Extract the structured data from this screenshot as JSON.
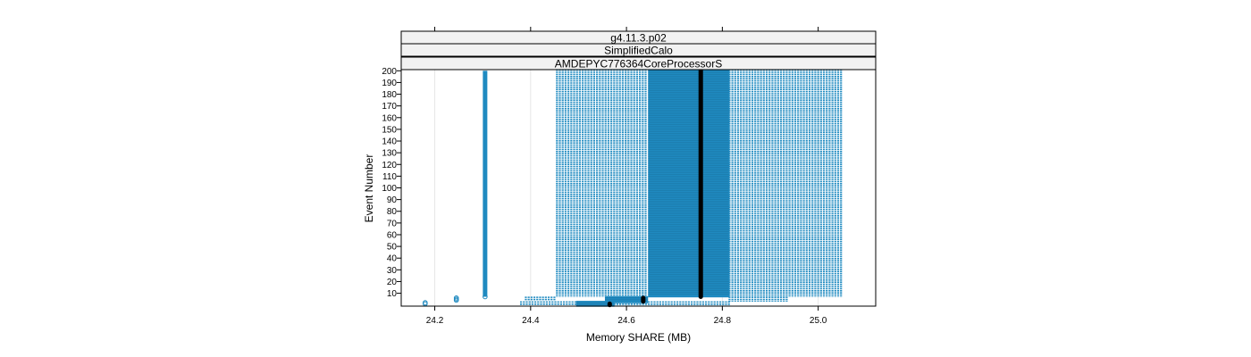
{
  "chart_data": {
    "type": "scatter",
    "strips": [
      "g4.11.3.p02",
      "SimplifiedCalo",
      "AMDEPYC776364CoreProcessorS"
    ],
    "xlabel": "Memory SHARE (MB)",
    "ylabel": "Event Number",
    "xlim": [
      24.13,
      25.12
    ],
    "ylim": [
      -1,
      201
    ],
    "x_ticks": [
      "24.2",
      "24.4",
      "24.6",
      "24.8",
      "25.0"
    ],
    "x_tick_values": [
      24.2,
      24.4,
      24.6,
      24.8,
      25.0
    ],
    "y_ticks": [
      "10",
      "20",
      "30",
      "40",
      "50",
      "60",
      "70",
      "80",
      "90",
      "100",
      "110",
      "120",
      "130",
      "140",
      "150",
      "160",
      "170",
      "180",
      "190",
      "200"
    ],
    "y_tick_values": [
      10,
      20,
      30,
      40,
      50,
      60,
      70,
      80,
      90,
      100,
      110,
      120,
      130,
      140,
      150,
      160,
      170,
      180,
      190,
      200
    ],
    "grid": "vertical",
    "colors": {
      "points": "#1f8ac0",
      "highlight": "#000000",
      "strip_bg": "#f2f2f2",
      "grid": "#e6e6e6"
    },
    "series": [
      {
        "kind": "single_points",
        "x": [
          24.18,
          24.18,
          24.245,
          24.245,
          24.245
        ],
        "y": [
          1,
          2,
          4,
          5,
          6
        ]
      },
      {
        "kind": "column",
        "x": 24.305,
        "y_from": 7,
        "y_to": 200
      },
      {
        "kind": "band",
        "x_from": 24.455,
        "x_to": 24.645,
        "y_from": 8,
        "y_to": 200,
        "density": "dotted"
      },
      {
        "kind": "band",
        "x_from": 24.645,
        "x_to": 24.815,
        "y_from": 8,
        "y_to": 200,
        "density": "dense"
      },
      {
        "kind": "band",
        "x_from": 24.815,
        "x_to": 25.05,
        "y_from": 8,
        "y_to": 200,
        "density": "dotted"
      },
      {
        "kind": "band",
        "x_from": 24.39,
        "x_to": 24.455,
        "y_from": 5,
        "y_to": 6,
        "density": "dotted"
      },
      {
        "kind": "band",
        "x_from": 24.815,
        "x_to": 24.94,
        "y_from": 4,
        "y_to": 6,
        "density": "dotted"
      },
      {
        "kind": "band",
        "x_from": 24.38,
        "x_to": 24.495,
        "y_from": 1,
        "y_to": 2,
        "density": "dotted"
      },
      {
        "kind": "band",
        "x_from": 24.555,
        "x_to": 24.645,
        "y_from": 3,
        "y_to": 6,
        "density": "dense"
      },
      {
        "kind": "band",
        "x_from": 24.495,
        "x_to": 24.575,
        "y_from": 0,
        "y_to": 2,
        "density": "dense"
      },
      {
        "kind": "band",
        "x_from": 24.575,
        "x_to": 24.815,
        "y_from": 0,
        "y_to": 2,
        "density": "dotted"
      }
    ],
    "highlights": [
      {
        "x": 24.755,
        "y_from": 7,
        "y_to": 200
      },
      {
        "x": 24.635,
        "y_from": 3,
        "y_to": 6
      },
      {
        "x": 24.565,
        "y_from": 0,
        "y_to": 1
      }
    ]
  }
}
